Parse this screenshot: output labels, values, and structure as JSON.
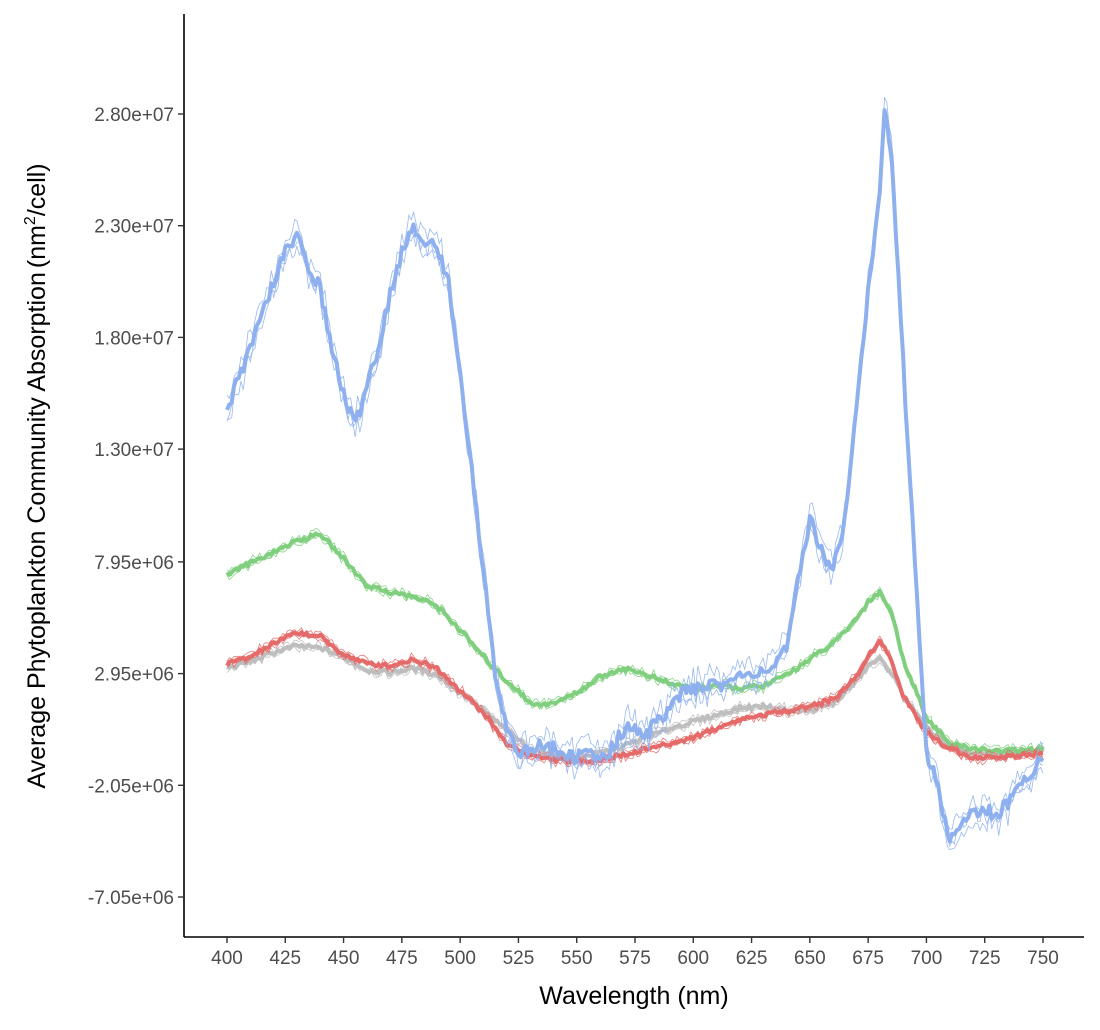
{
  "chart_data": {
    "type": "line",
    "xlabel": "Wavelength (nm)",
    "ylabel": "Average Phytoplankton Community Absorption",
    "ylabel_unit": {
      "base": "nm",
      "sup": "2",
      "rest": "/cell"
    },
    "xlim": [
      382,
      762
    ],
    "ylim": [
      -8900000.0,
      32500000.0
    ],
    "x_ticks": [
      400,
      425,
      450,
      475,
      500,
      525,
      550,
      575,
      600,
      625,
      650,
      675,
      700,
      725,
      750
    ],
    "y_ticks": [
      -7050000,
      -2050000,
      2950000,
      7950000,
      13000000,
      18000000,
      23000000,
      28000000
    ],
    "y_tick_labels": [
      "-7.05e+06",
      "-2.05e+06",
      "2.95e+06",
      "7.95e+06",
      "1.30e+07",
      "1.80e+07",
      "2.30e+07",
      "2.80e+07"
    ],
    "grid": false,
    "legend": "none",
    "series": [
      {
        "color": "#bebebe",
        "x": [
          400,
          410,
          420,
          430,
          440,
          450,
          460,
          470,
          480,
          490,
          500,
          510,
          520,
          530,
          540,
          550,
          560,
          570,
          580,
          590,
          600,
          610,
          620,
          630,
          640,
          650,
          660,
          670,
          675,
          680,
          685,
          690,
          700,
          710,
          720,
          730,
          740,
          750
        ],
        "y": [
          3200000,
          3500000,
          3900000,
          4200000,
          4100000,
          3700000,
          3100000,
          3000000,
          3200000,
          2900000,
          2100000,
          1300000,
          400000,
          -400000,
          -700000,
          -800000,
          -600000,
          -300000,
          100000,
          500000,
          800000,
          1100000,
          1400000,
          1500000,
          1300000,
          1300000,
          1600000,
          2600000,
          3300000,
          3600000,
          3000000,
          2000000,
          500000,
          -300000,
          -600000,
          -700000,
          -600000,
          -500000
        ]
      },
      {
        "color": "#7fcf7f",
        "x": [
          400,
          410,
          420,
          430,
          440,
          450,
          460,
          470,
          480,
          490,
          500,
          510,
          520,
          525,
          530,
          540,
          550,
          560,
          570,
          580,
          590,
          600,
          610,
          620,
          630,
          640,
          650,
          660,
          670,
          675,
          680,
          685,
          690,
          700,
          710,
          720,
          730,
          740,
          750
        ],
        "y": [
          7400000,
          7900000,
          8400000,
          8900000,
          9200000,
          8100000,
          6900000,
          6600000,
          6400000,
          6000000,
          4900000,
          3700000,
          2600000,
          2200000,
          1600000,
          1600000,
          2100000,
          2800000,
          3200000,
          2900000,
          2500000,
          2300000,
          2400000,
          2300000,
          2400000,
          2900000,
          3600000,
          4300000,
          5400000,
          6200000,
          6600000,
          5700000,
          3600000,
          1000000,
          -200000,
          -400000,
          -500000,
          -500000,
          -400000
        ]
      },
      {
        "color": "#e56b6b",
        "x": [
          400,
          410,
          420,
          430,
          440,
          450,
          460,
          470,
          480,
          490,
          500,
          510,
          520,
          530,
          540,
          550,
          560,
          570,
          580,
          590,
          600,
          610,
          620,
          630,
          640,
          650,
          660,
          670,
          675,
          680,
          685,
          690,
          700,
          710,
          720,
          730,
          740,
          750
        ],
        "y": [
          3400000,
          3700000,
          4300000,
          4800000,
          4600000,
          3800000,
          3400000,
          3300000,
          3600000,
          3200000,
          2200000,
          1200000,
          -200000,
          -700000,
          -900000,
          -1000000,
          -900000,
          -700000,
          -400000,
          -200000,
          100000,
          500000,
          900000,
          1100000,
          1300000,
          1500000,
          1800000,
          2800000,
          3700000,
          4500000,
          3500000,
          2000000,
          300000,
          -400000,
          -800000,
          -800000,
          -700000,
          -600000
        ]
      },
      {
        "color": "#8fb0ee",
        "x": [
          400,
          405,
          410,
          415,
          420,
          425,
          430,
          435,
          440,
          445,
          450,
          455,
          460,
          465,
          470,
          475,
          480,
          485,
          490,
          495,
          500,
          505,
          510,
          515,
          520,
          525,
          530,
          535,
          540,
          545,
          550,
          555,
          560,
          565,
          570,
          575,
          580,
          585,
          590,
          595,
          600,
          605,
          610,
          615,
          620,
          625,
          630,
          635,
          640,
          645,
          650,
          655,
          660,
          665,
          670,
          675,
          680,
          682,
          685,
          690,
          695,
          700,
          705,
          710,
          715,
          720,
          725,
          730,
          735,
          740,
          745,
          750
        ],
        "y": [
          14800000,
          16200000,
          17400000,
          19000000,
          20500000,
          21800000,
          22500000,
          21200000,
          20200000,
          17400000,
          15500000,
          14000000,
          16000000,
          17500000,
          20000000,
          21800000,
          22800000,
          22400000,
          22000000,
          20500000,
          16500000,
          12000000,
          7500000,
          3000000,
          500000,
          -500000,
          -600000,
          -200000,
          -400000,
          -700000,
          -800000,
          -600000,
          -900000,
          -400000,
          400000,
          500000,
          300000,
          800000,
          1500000,
          2000000,
          2200000,
          2500000,
          2400000,
          2600000,
          2800000,
          3000000,
          3100000,
          3300000,
          4000000,
          7000000,
          9900000,
          8500000,
          7500000,
          10000000,
          15000000,
          20000000,
          24500000,
          28300000,
          26000000,
          17000000,
          8000000,
          -500000,
          -2200000,
          -4600000,
          -3600000,
          -3400000,
          -3000000,
          -3400000,
          -2800000,
          -2200000,
          -1400000,
          -700000
        ]
      }
    ]
  }
}
